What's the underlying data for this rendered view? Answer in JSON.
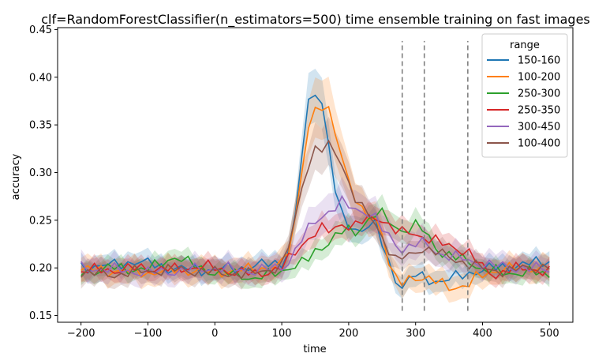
{
  "chart_data": {
    "type": "line",
    "title": "clf=RandomForestClassifier(n_estimators=500) time ensemble training on fast images",
    "xlabel": "time",
    "ylabel": "accuracy",
    "xlim": [
      -235,
      535
    ],
    "ylim": [
      0.143,
      0.452
    ],
    "xticks": [
      -200,
      -100,
      0,
      100,
      200,
      300,
      400,
      500
    ],
    "yticks": [
      0.15,
      0.2,
      0.25,
      0.3,
      0.35,
      0.4,
      0.45
    ],
    "ytick_labels": [
      "0.15",
      "0.20",
      "0.25",
      "0.30",
      "0.35",
      "0.40",
      "0.45"
    ],
    "grid": false,
    "legend": {
      "title": "range",
      "placement": "top-right"
    },
    "vlines": {
      "x": [
        280,
        313,
        378
      ],
      "ymin": 0.155,
      "ymax": 0.438,
      "style": "dashed",
      "color": "#808080"
    },
    "series": [
      {
        "name": "150-160",
        "color": "#1f77b4",
        "knots": [
          [
            -200,
            0.201
          ],
          [
            -150,
            0.203
          ],
          [
            -120,
            0.207
          ],
          [
            -60,
            0.199
          ],
          [
            0,
            0.198
          ],
          [
            50,
            0.201
          ],
          [
            100,
            0.206
          ],
          [
            115,
            0.225
          ],
          [
            125,
            0.28
          ],
          [
            135,
            0.355
          ],
          [
            145,
            0.388
          ],
          [
            155,
            0.386
          ],
          [
            165,
            0.36
          ],
          [
            175,
            0.3
          ],
          [
            185,
            0.26
          ],
          [
            195,
            0.248
          ],
          [
            210,
            0.24
          ],
          [
            225,
            0.243
          ],
          [
            240,
            0.245
          ],
          [
            255,
            0.215
          ],
          [
            265,
            0.195
          ],
          [
            280,
            0.18
          ],
          [
            290,
            0.187
          ],
          [
            300,
            0.192
          ],
          [
            320,
            0.188
          ],
          [
            340,
            0.186
          ],
          [
            360,
            0.19
          ],
          [
            380,
            0.195
          ],
          [
            400,
            0.198
          ],
          [
            430,
            0.201
          ],
          [
            460,
            0.203
          ],
          [
            500,
            0.208
          ]
        ],
        "band": 0.011
      },
      {
        "name": "100-200",
        "color": "#ff7f0e",
        "knots": [
          [
            -200,
            0.198
          ],
          [
            -150,
            0.197
          ],
          [
            -100,
            0.195
          ],
          [
            -50,
            0.198
          ],
          [
            0,
            0.196
          ],
          [
            50,
            0.198
          ],
          [
            100,
            0.203
          ],
          [
            115,
            0.225
          ],
          [
            125,
            0.275
          ],
          [
            135,
            0.335
          ],
          [
            145,
            0.362
          ],
          [
            155,
            0.366
          ],
          [
            165,
            0.367
          ],
          [
            175,
            0.36
          ],
          [
            185,
            0.33
          ],
          [
            195,
            0.305
          ],
          [
            205,
            0.28
          ],
          [
            215,
            0.26
          ],
          [
            225,
            0.255
          ],
          [
            240,
            0.252
          ],
          [
            250,
            0.238
          ],
          [
            260,
            0.205
          ],
          [
            270,
            0.187
          ],
          [
            280,
            0.183
          ],
          [
            295,
            0.192
          ],
          [
            310,
            0.19
          ],
          [
            330,
            0.185
          ],
          [
            350,
            0.181
          ],
          [
            365,
            0.18
          ],
          [
            380,
            0.182
          ],
          [
            395,
            0.192
          ],
          [
            420,
            0.198
          ],
          [
            460,
            0.2
          ],
          [
            500,
            0.2
          ]
        ],
        "band": 0.013
      },
      {
        "name": "250-300",
        "color": "#2ca02c",
        "knots": [
          [
            -200,
            0.195
          ],
          [
            -150,
            0.2
          ],
          [
            -100,
            0.198
          ],
          [
            -60,
            0.212
          ],
          [
            -40,
            0.205
          ],
          [
            0,
            0.195
          ],
          [
            40,
            0.193
          ],
          [
            60,
            0.188
          ],
          [
            80,
            0.192
          ],
          [
            100,
            0.198
          ],
          [
            120,
            0.202
          ],
          [
            135,
            0.205
          ],
          [
            150,
            0.218
          ],
          [
            165,
            0.225
          ],
          [
            180,
            0.232
          ],
          [
            195,
            0.24
          ],
          [
            210,
            0.238
          ],
          [
            225,
            0.248
          ],
          [
            245,
            0.258
          ],
          [
            260,
            0.25
          ],
          [
            275,
            0.24
          ],
          [
            290,
            0.24
          ],
          [
            305,
            0.245
          ],
          [
            320,
            0.232
          ],
          [
            340,
            0.215
          ],
          [
            360,
            0.21
          ],
          [
            380,
            0.208
          ],
          [
            400,
            0.198
          ],
          [
            430,
            0.195
          ],
          [
            470,
            0.195
          ],
          [
            500,
            0.193
          ]
        ],
        "band": 0.01
      },
      {
        "name": "250-350",
        "color": "#d62728",
        "knots": [
          [
            -200,
            0.197
          ],
          [
            -150,
            0.198
          ],
          [
            -100,
            0.2
          ],
          [
            -60,
            0.198
          ],
          [
            -20,
            0.202
          ],
          [
            20,
            0.197
          ],
          [
            60,
            0.193
          ],
          [
            100,
            0.2
          ],
          [
            115,
            0.212
          ],
          [
            130,
            0.225
          ],
          [
            145,
            0.235
          ],
          [
            160,
            0.24
          ],
          [
            175,
            0.238
          ],
          [
            190,
            0.248
          ],
          [
            205,
            0.242
          ],
          [
            220,
            0.248
          ],
          [
            245,
            0.255
          ],
          [
            260,
            0.245
          ],
          [
            275,
            0.235
          ],
          [
            290,
            0.238
          ],
          [
            305,
            0.235
          ],
          [
            320,
            0.23
          ],
          [
            340,
            0.225
          ],
          [
            360,
            0.222
          ],
          [
            380,
            0.215
          ],
          [
            400,
            0.2
          ],
          [
            420,
            0.193
          ],
          [
            440,
            0.198
          ],
          [
            470,
            0.2
          ],
          [
            500,
            0.195
          ]
        ],
        "band": 0.01
      },
      {
        "name": "300-450",
        "color": "#9467bd",
        "knots": [
          [
            -200,
            0.2
          ],
          [
            -150,
            0.198
          ],
          [
            -100,
            0.195
          ],
          [
            -50,
            0.197
          ],
          [
            0,
            0.2
          ],
          [
            50,
            0.197
          ],
          [
            100,
            0.2
          ],
          [
            115,
            0.212
          ],
          [
            130,
            0.23
          ],
          [
            145,
            0.245
          ],
          [
            160,
            0.255
          ],
          [
            175,
            0.262
          ],
          [
            190,
            0.268
          ],
          [
            205,
            0.262
          ],
          [
            220,
            0.26
          ],
          [
            235,
            0.258
          ],
          [
            250,
            0.24
          ],
          [
            265,
            0.228
          ],
          [
            280,
            0.22
          ],
          [
            300,
            0.225
          ],
          [
            315,
            0.225
          ],
          [
            335,
            0.215
          ],
          [
            355,
            0.212
          ],
          [
            375,
            0.208
          ],
          [
            395,
            0.205
          ],
          [
            420,
            0.202
          ],
          [
            460,
            0.2
          ],
          [
            500,
            0.198
          ]
        ],
        "band": 0.013
      },
      {
        "name": "100-400",
        "color": "#8c564b",
        "knots": [
          [
            -200,
            0.195
          ],
          [
            -150,
            0.193
          ],
          [
            -100,
            0.197
          ],
          [
            -50,
            0.198
          ],
          [
            0,
            0.195
          ],
          [
            50,
            0.193
          ],
          [
            100,
            0.202
          ],
          [
            115,
            0.232
          ],
          [
            130,
            0.285
          ],
          [
            140,
            0.31
          ],
          [
            150,
            0.325
          ],
          [
            160,
            0.324
          ],
          [
            170,
            0.327
          ],
          [
            180,
            0.32
          ],
          [
            190,
            0.31
          ],
          [
            200,
            0.29
          ],
          [
            215,
            0.265
          ],
          [
            230,
            0.255
          ],
          [
            245,
            0.24
          ],
          [
            260,
            0.22
          ],
          [
            270,
            0.208
          ],
          [
            280,
            0.21
          ],
          [
            295,
            0.213
          ],
          [
            310,
            0.222
          ],
          [
            325,
            0.218
          ],
          [
            345,
            0.212
          ],
          [
            365,
            0.208
          ],
          [
            385,
            0.203
          ],
          [
            405,
            0.198
          ],
          [
            440,
            0.197
          ],
          [
            470,
            0.2
          ],
          [
            500,
            0.202
          ]
        ],
        "band": 0.012
      }
    ]
  }
}
